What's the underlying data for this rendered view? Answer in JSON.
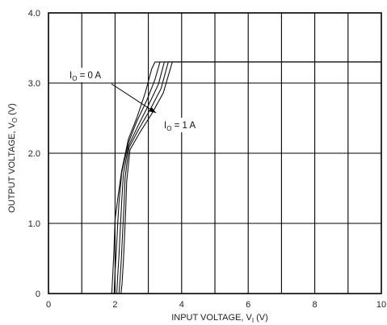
{
  "chart_data": {
    "type": "line",
    "xlabel_main": "INPUT VOLTAGE, V",
    "xlabel_sub": "I",
    "xlabel_unit": " (V)",
    "ylabel_main": "OUTPUT VOLTAGE, V",
    "ylabel_sub": "O",
    "ylabel_unit": " (V)",
    "xlim": [
      0,
      10
    ],
    "ylim": [
      0,
      4.0
    ],
    "x_ticks": [
      "0",
      "2",
      "4",
      "6",
      "8",
      "10"
    ],
    "y_ticks": [
      "0",
      "1.0",
      "2.0",
      "3.0",
      "4.0"
    ],
    "grid": true,
    "series": [
      {
        "x": [
          1.9,
          1.93,
          1.96,
          2.0,
          2.08,
          2.2,
          2.4,
          2.65,
          2.9,
          3.1,
          3.2,
          10.0
        ],
        "y": [
          0.0,
          0.25,
          0.55,
          1.05,
          1.35,
          1.75,
          2.2,
          2.5,
          2.85,
          3.2,
          3.3,
          3.3
        ]
      },
      {
        "x": [
          1.97,
          2.0,
          2.04,
          2.08,
          2.12,
          2.2,
          2.4,
          2.65,
          2.95,
          3.2,
          3.35,
          10.0
        ],
        "y": [
          0.0,
          0.3,
          0.6,
          1.0,
          1.3,
          1.72,
          2.15,
          2.45,
          2.75,
          3.05,
          3.3,
          3.3
        ]
      },
      {
        "x": [
          2.05,
          2.08,
          2.12,
          2.16,
          2.2,
          2.25,
          2.4,
          2.7,
          3.0,
          3.3,
          3.48,
          10.0
        ],
        "y": [
          0.0,
          0.25,
          0.55,
          0.95,
          1.3,
          1.7,
          2.1,
          2.4,
          2.68,
          2.98,
          3.3,
          3.3
        ]
      },
      {
        "x": [
          2.12,
          2.15,
          2.19,
          2.23,
          2.27,
          2.3,
          2.42,
          2.72,
          3.05,
          3.38,
          3.6,
          10.0
        ],
        "y": [
          0.0,
          0.2,
          0.5,
          0.9,
          1.25,
          1.65,
          2.08,
          2.35,
          2.62,
          2.92,
          3.3,
          3.3
        ]
      },
      {
        "x": [
          2.18,
          2.21,
          2.25,
          2.29,
          2.32,
          2.35,
          2.45,
          2.75,
          3.1,
          3.45,
          3.72,
          10.0
        ],
        "y": [
          0.0,
          0.15,
          0.45,
          0.85,
          1.2,
          1.6,
          2.05,
          2.3,
          2.56,
          2.86,
          3.3,
          3.3
        ]
      }
    ],
    "annotations": [
      {
        "main": "I",
        "sub": "O",
        "rest": " = 0 A"
      },
      {
        "main": "I",
        "sub": "O",
        "rest": " = 1 A"
      }
    ]
  }
}
